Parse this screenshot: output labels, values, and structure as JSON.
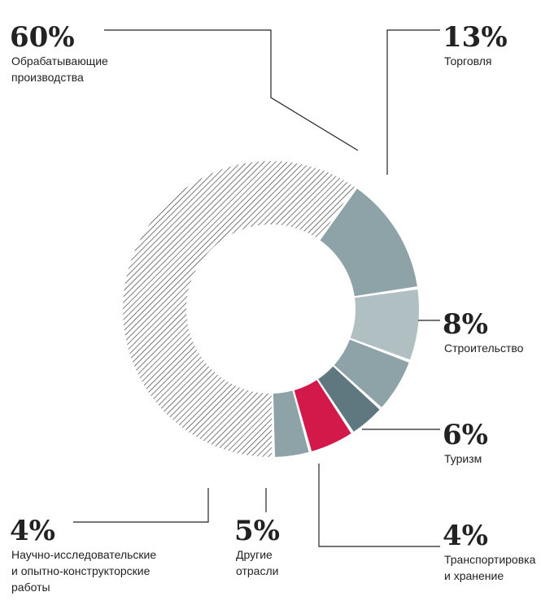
{
  "chart_data": {
    "type": "pie",
    "variant": "donut",
    "slices": [
      {
        "pct_label": "60%",
        "value": 60,
        "label_lines": [
          "Обрабатывающие",
          "производства"
        ],
        "color": "#ffffff",
        "pattern": "hatch"
      },
      {
        "pct_label": "13%",
        "value": 13,
        "label_lines": [
          "Торговля"
        ],
        "color": "#8ea3a8"
      },
      {
        "pct_label": "8%",
        "value": 8,
        "label_lines": [
          "Строительство"
        ],
        "color": "#b0bfc2"
      },
      {
        "pct_label": "6%",
        "value": 6,
        "label_lines": [
          "Туризм"
        ],
        "color": "#8ea3a8"
      },
      {
        "pct_label": "4%",
        "value": 4,
        "label_lines": [
          "Транспортировка",
          "и хранение"
        ],
        "color": "#5f7880"
      },
      {
        "pct_label": "5%",
        "value": 5,
        "label_lines": [
          "Другие",
          "отрасли"
        ],
        "color": "#d2194a"
      },
      {
        "pct_label": "4%",
        "value": 4,
        "label_lines": [
          "Научно-исследовательские",
          "и опытно-конструкторские",
          "работы"
        ],
        "color": "#8ea3a8"
      }
    ]
  }
}
